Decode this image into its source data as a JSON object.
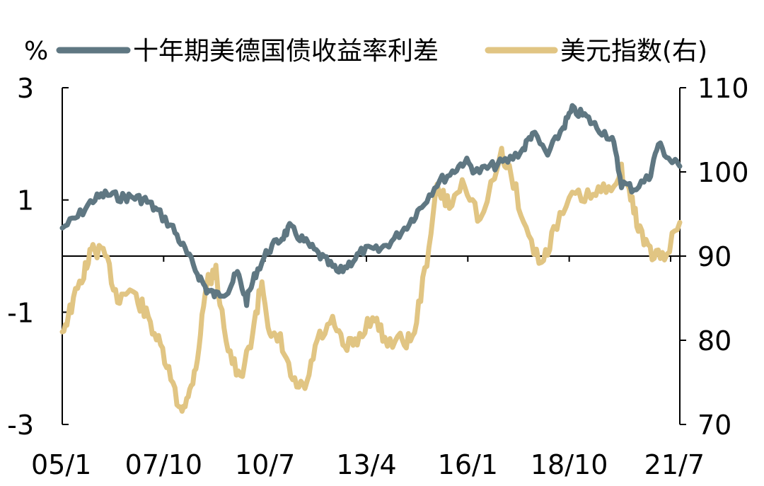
{
  "chart_data": {
    "type": "line",
    "left_axis_unit": "%",
    "x_tick_labels": [
      "05/1",
      "07/10",
      "10/7",
      "13/4",
      "16/1",
      "18/10",
      "21/7"
    ],
    "x_tick_dates": [
      "2005-01",
      "2007-10",
      "2010-07",
      "2013-04",
      "2016-01",
      "2018-10",
      "2021-07"
    ],
    "x_range": [
      "2005-01",
      "2021-10"
    ],
    "y_left": {
      "min": -3,
      "max": 3,
      "ticks": [
        3,
        1,
        -1,
        -3
      ],
      "tick_labels": [
        "3",
        "1",
        "-1",
        "-3"
      ]
    },
    "y_right": {
      "min": 70,
      "max": 110,
      "ticks": [
        110,
        100,
        90,
        80,
        70
      ],
      "tick_labels": [
        "110",
        "100",
        "90",
        "80",
        "70"
      ]
    },
    "zero_line": 0,
    "legend_position": "top",
    "series": [
      {
        "name": "十年期美德国债收益率利差",
        "axis": "left",
        "color": "#5f7782",
        "points": [
          [
            "2005-01",
            0.5
          ],
          [
            "2005-06",
            0.7
          ],
          [
            "2005-11",
            1.0
          ],
          [
            "2006-03",
            1.1
          ],
          [
            "2006-08",
            1.05
          ],
          [
            "2006-12",
            1.05
          ],
          [
            "2007-04",
            1.0
          ],
          [
            "2007-08",
            0.8
          ],
          [
            "2008-01",
            0.5
          ],
          [
            "2008-05",
            0.1
          ],
          [
            "2008-09",
            -0.3
          ],
          [
            "2008-12",
            -0.6
          ],
          [
            "2009-03",
            -0.7
          ],
          [
            "2009-07",
            -0.6
          ],
          [
            "2009-10",
            -0.3
          ],
          [
            "2010-01",
            -0.8
          ],
          [
            "2010-04",
            -0.3
          ],
          [
            "2010-08",
            0.1
          ],
          [
            "2010-12",
            0.3
          ],
          [
            "2011-03",
            0.5
          ],
          [
            "2011-07",
            0.3
          ],
          [
            "2011-11",
            0.1
          ],
          [
            "2012-03",
            -0.1
          ],
          [
            "2012-07",
            -0.3
          ],
          [
            "2012-11",
            -0.1
          ],
          [
            "2013-03",
            0.1
          ],
          [
            "2013-08",
            0.1
          ],
          [
            "2014-01",
            0.3
          ],
          [
            "2014-06",
            0.6
          ],
          [
            "2014-10",
            0.9
          ],
          [
            "2015-03",
            1.3
          ],
          [
            "2015-08",
            1.5
          ],
          [
            "2015-12",
            1.7
          ],
          [
            "2016-04",
            1.5
          ],
          [
            "2016-09",
            1.6
          ],
          [
            "2017-02",
            1.7
          ],
          [
            "2017-07",
            1.9
          ],
          [
            "2017-10",
            2.2
          ],
          [
            "2018-03",
            1.8
          ],
          [
            "2018-08",
            2.3
          ],
          [
            "2018-11",
            2.6
          ],
          [
            "2019-03",
            2.5
          ],
          [
            "2019-07",
            2.3
          ],
          [
            "2019-12",
            2.1
          ],
          [
            "2020-03",
            1.3
          ],
          [
            "2020-07",
            1.2
          ],
          [
            "2020-12",
            1.4
          ],
          [
            "2021-03",
            2.0
          ],
          [
            "2021-07",
            1.7
          ],
          [
            "2021-10",
            1.6
          ]
        ]
      },
      {
        "name": "美元指数(右)",
        "axis": "right",
        "color": "#e1c583",
        "points": [
          [
            "2005-01",
            81
          ],
          [
            "2005-04",
            84
          ],
          [
            "2005-08",
            88
          ],
          [
            "2005-11",
            91
          ],
          [
            "2006-03",
            90
          ],
          [
            "2006-07",
            85
          ],
          [
            "2006-11",
            86
          ],
          [
            "2007-03",
            84
          ],
          [
            "2007-07",
            81
          ],
          [
            "2007-11",
            77
          ],
          [
            "2008-03",
            72
          ],
          [
            "2008-06",
            73
          ],
          [
            "2008-09",
            78
          ],
          [
            "2008-12",
            87
          ],
          [
            "2009-03",
            88
          ],
          [
            "2009-07",
            79
          ],
          [
            "2009-11",
            75
          ],
          [
            "2010-03",
            81
          ],
          [
            "2010-06",
            87
          ],
          [
            "2010-09",
            80
          ],
          [
            "2010-12",
            80
          ],
          [
            "2011-04",
            75
          ],
          [
            "2011-08",
            74
          ],
          [
            "2011-12",
            80
          ],
          [
            "2012-05",
            82
          ],
          [
            "2012-09",
            79
          ],
          [
            "2013-01",
            80
          ],
          [
            "2013-06",
            83
          ],
          [
            "2013-10",
            80
          ],
          [
            "2014-03",
            80
          ],
          [
            "2014-07",
            80
          ],
          [
            "2014-11",
            88
          ],
          [
            "2015-03",
            98
          ],
          [
            "2015-07",
            96
          ],
          [
            "2015-12",
            99
          ],
          [
            "2016-05",
            94
          ],
          [
            "2016-12",
            102
          ],
          [
            "2017-03",
            100
          ],
          [
            "2017-08",
            93
          ],
          [
            "2018-01",
            89
          ],
          [
            "2018-05",
            93
          ],
          [
            "2018-11",
            97
          ],
          [
            "2019-05",
            97
          ],
          [
            "2019-10",
            98
          ],
          [
            "2020-03",
            100
          ],
          [
            "2020-06",
            97
          ],
          [
            "2020-09",
            93
          ],
          [
            "2021-01",
            90
          ],
          [
            "2021-05",
            90
          ],
          [
            "2021-10",
            94
          ]
        ]
      }
    ]
  }
}
